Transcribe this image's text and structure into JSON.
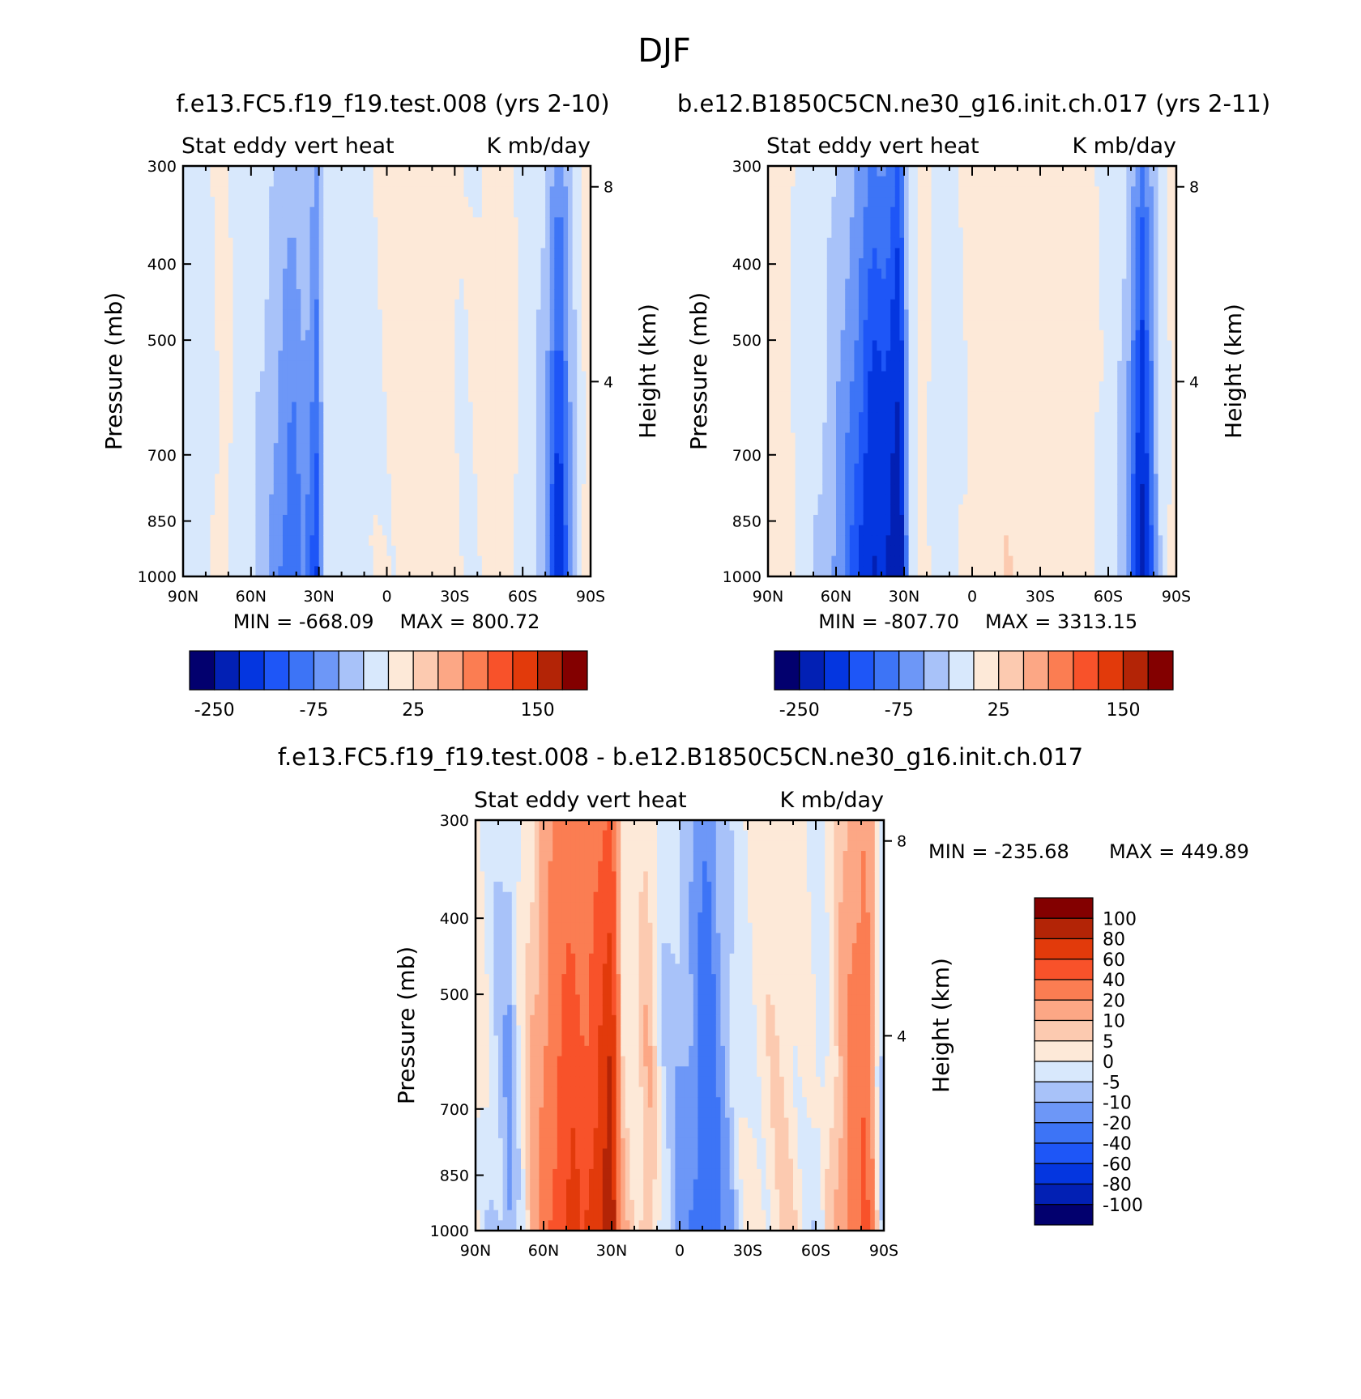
{
  "figure": {
    "title": "DJF"
  },
  "colors": {
    "levels16": [
      "#02006e",
      "#0220b4",
      "#0436e0",
      "#1e56f7",
      "#3d74f6",
      "#6d97f7",
      "#a8c2f9",
      "#d8e8fc",
      "#fde9d8",
      "#fccab0",
      "#fca785",
      "#fb7d52",
      "#f8522a",
      "#e23a0b",
      "#b32406",
      "#830000"
    ],
    "diff16": [
      "#02006e",
      "#0220b4",
      "#0436e0",
      "#1e56f7",
      "#3d74f6",
      "#6d97f7",
      "#a8c2f9",
      "#d8e8fc",
      "#fde9d8",
      "#fccab0",
      "#fca785",
      "#fb7d52",
      "#f8522a",
      "#e23a0b",
      "#b32406",
      "#830000"
    ],
    "axis": "#000000"
  },
  "chart_data": [
    {
      "type": "heatmap",
      "title": "f.e13.FC5.f19_f19.test.008 (yrs 2-10)",
      "subtitle_left": "Stat eddy vert heat",
      "subtitle_right": "K mb/day",
      "xlabel": "",
      "ylabel": "Pressure (mb)",
      "ylabel_right": "Height (km)",
      "x_ticks": [
        "90N",
        "60N",
        "30N",
        "0",
        "30S",
        "60S",
        "90S"
      ],
      "y_ticks": [
        "300",
        "400",
        "500",
        "700",
        "850",
        "1000"
      ],
      "y_ticks_right": [
        "8",
        "4"
      ],
      "min_label": "MIN = -668.09",
      "max_label": "MAX = 800.72",
      "colorbar_labels": [
        "-250",
        "-75",
        "25",
        "150"
      ],
      "lat_profile": [
        {
          "lat": 90,
          "v": -8
        },
        {
          "lat": 80,
          "v": -6
        },
        {
          "lat": 72,
          "v": 6
        },
        {
          "lat": 65,
          "v": -8
        },
        {
          "lat": 55,
          "v": -22
        },
        {
          "lat": 48,
          "v": -45
        },
        {
          "lat": 42,
          "v": -65
        },
        {
          "lat": 36,
          "v": -45
        },
        {
          "lat": 31,
          "v": -80
        },
        {
          "lat": 27,
          "v": -10
        },
        {
          "lat": 20,
          "v": -4
        },
        {
          "lat": 12,
          "v": -6
        },
        {
          "lat": 6,
          "v": -2
        },
        {
          "lat": 0,
          "v": 2
        },
        {
          "lat": -10,
          "v": 4
        },
        {
          "lat": -18,
          "v": 12
        },
        {
          "lat": -26,
          "v": 6
        },
        {
          "lat": -34,
          "v": -2
        },
        {
          "lat": -45,
          "v": 4
        },
        {
          "lat": -54,
          "v": 6
        },
        {
          "lat": -62,
          "v": -8
        },
        {
          "lat": -70,
          "v": -35
        },
        {
          "lat": -76,
          "v": -110
        },
        {
          "lat": -82,
          "v": -30
        },
        {
          "lat": -88,
          "v": 8
        }
      ]
    },
    {
      "type": "heatmap",
      "title": "b.e12.B1850C5CN.ne30_g16.init.ch.017 (yrs 2-11)",
      "subtitle_left": "Stat eddy vert heat",
      "subtitle_right": "K mb/day",
      "xlabel": "",
      "ylabel": "Pressure (mb)",
      "ylabel_right": "Height (km)",
      "x_ticks": [
        "90N",
        "60N",
        "30N",
        "0",
        "30S",
        "60S",
        "90S"
      ],
      "y_ticks": [
        "300",
        "400",
        "500",
        "700",
        "850",
        "1000"
      ],
      "y_ticks_right": [
        "8",
        "4"
      ],
      "min_label": "MIN = -807.70",
      "max_label": "MAX = 3313.15",
      "colorbar_labels": [
        "-250",
        "-75",
        "25",
        "150"
      ],
      "lat_profile": [
        {
          "lat": 90,
          "v": 6
        },
        {
          "lat": 82,
          "v": 4
        },
        {
          "lat": 74,
          "v": -8
        },
        {
          "lat": 66,
          "v": -20
        },
        {
          "lat": 58,
          "v": -45
        },
        {
          "lat": 50,
          "v": -80
        },
        {
          "lat": 44,
          "v": -120
        },
        {
          "lat": 38,
          "v": -110
        },
        {
          "lat": 32,
          "v": -160
        },
        {
          "lat": 28,
          "v": -15
        },
        {
          "lat": 22,
          "v": 6
        },
        {
          "lat": 15,
          "v": -6
        },
        {
          "lat": 8,
          "v": -4
        },
        {
          "lat": 0,
          "v": 4
        },
        {
          "lat": -8,
          "v": 6
        },
        {
          "lat": -16,
          "v": 18
        },
        {
          "lat": -24,
          "v": 10
        },
        {
          "lat": -32,
          "v": 4
        },
        {
          "lat": -42,
          "v": 6
        },
        {
          "lat": -52,
          "v": 4
        },
        {
          "lat": -60,
          "v": -6
        },
        {
          "lat": -68,
          "v": -30
        },
        {
          "lat": -75,
          "v": -130
        },
        {
          "lat": -82,
          "v": -25
        },
        {
          "lat": -88,
          "v": 6
        }
      ]
    },
    {
      "type": "heatmap",
      "title": "f.e13.FC5.f19_f19.test.008 - b.e12.B1850C5CN.ne30_g16.init.ch.017",
      "subtitle_left": "Stat eddy vert heat",
      "subtitle_right": "K mb/day",
      "xlabel": "",
      "ylabel": "Pressure (mb)",
      "ylabel_right": "Height (km)",
      "x_ticks": [
        "90N",
        "60N",
        "30N",
        "0",
        "30S",
        "60S",
        "90S"
      ],
      "y_ticks": [
        "300",
        "400",
        "500",
        "700",
        "850",
        "1000"
      ],
      "y_ticks_right": [
        "8",
        "4"
      ],
      "min_label": "MIN = -235.68",
      "max_label": "MAX = 449.89",
      "colorbar_labels": [
        "100",
        "80",
        "60",
        "40",
        "20",
        "10",
        "5",
        "0",
        "-5",
        "-10",
        "-20",
        "-40",
        "-60",
        "-80",
        "-100"
      ],
      "lat_profile": [
        {
          "lat": 90,
          "v": 3
        },
        {
          "lat": 82,
          "v": -4
        },
        {
          "lat": 75,
          "v": -8
        },
        {
          "lat": 68,
          "v": 4
        },
        {
          "lat": 62,
          "v": 12
        },
        {
          "lat": 55,
          "v": 30
        },
        {
          "lat": 48,
          "v": 45
        },
        {
          "lat": 42,
          "v": 35
        },
        {
          "lat": 36,
          "v": 50
        },
        {
          "lat": 30,
          "v": 70
        },
        {
          "lat": 26,
          "v": 6
        },
        {
          "lat": 20,
          "v": 2
        },
        {
          "lat": 14,
          "v": 8
        },
        {
          "lat": 8,
          "v": -3
        },
        {
          "lat": 2,
          "v": -6
        },
        {
          "lat": -6,
          "v": -12
        },
        {
          "lat": -12,
          "v": -30
        },
        {
          "lat": -18,
          "v": -10
        },
        {
          "lat": -26,
          "v": -3
        },
        {
          "lat": -34,
          "v": 2
        },
        {
          "lat": -44,
          "v": 3
        },
        {
          "lat": -54,
          "v": 2
        },
        {
          "lat": -62,
          "v": -3
        },
        {
          "lat": -70,
          "v": 8
        },
        {
          "lat": -76,
          "v": 20
        },
        {
          "lat": -82,
          "v": 30
        },
        {
          "lat": -88,
          "v": -3
        }
      ]
    }
  ]
}
